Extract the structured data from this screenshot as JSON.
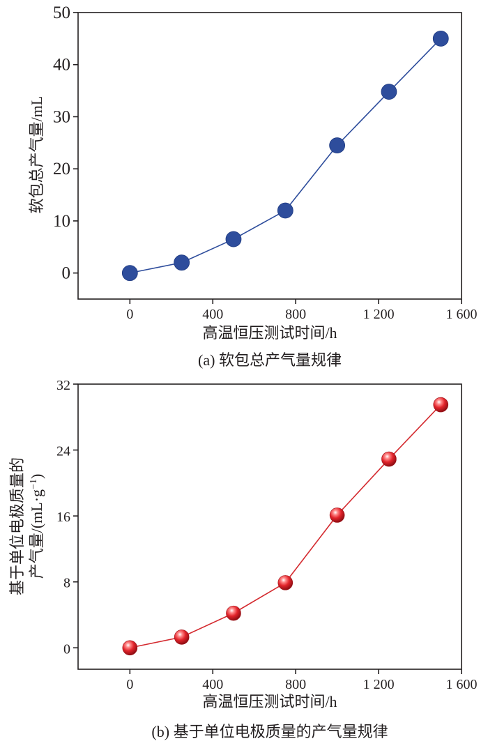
{
  "chart_data": [
    {
      "type": "line",
      "caption": "(a) 软包总产气量规律",
      "xlabel": "高温恒压测试时间/h",
      "ylabel": "软包总产气量/mL",
      "xlim": [
        -250,
        1600
      ],
      "ylim": [
        -5,
        50
      ],
      "xticks": [
        0,
        400,
        800,
        1200,
        1600
      ],
      "xtick_labels": [
        "0",
        "400",
        "800",
        "1 200",
        "1 600"
      ],
      "yticks": [
        0,
        10,
        20,
        30,
        40,
        50
      ],
      "ytick_labels": [
        "0",
        "10",
        "20",
        "30",
        "40",
        "50"
      ],
      "series": [
        {
          "x": [
            0,
            250,
            500,
            750,
            1000,
            1250,
            1500
          ],
          "y": [
            0,
            2,
            6.5,
            12,
            24.5,
            34.8,
            45
          ],
          "color": "#2e4d9c",
          "marker": "circle"
        }
      ],
      "grid": false
    },
    {
      "type": "line",
      "caption": "(b) 基于单位电极质量的产气量规律",
      "xlabel": "高温恒压测试时间/h",
      "ylabel_lines": [
        "基于单位电极质量的",
        "产气量/(mL·g",
        "−1",
        ")"
      ],
      "xlim": [
        -250,
        1600
      ],
      "ylim": [
        -2.6,
        32
      ],
      "xticks": [
        0,
        400,
        800,
        1200,
        1600
      ],
      "xtick_labels": [
        "0",
        "400",
        "800",
        "1 200",
        "1 600"
      ],
      "yticks": [
        0,
        8,
        16,
        24,
        32
      ],
      "ytick_labels": [
        "0",
        "8",
        "16",
        "24",
        "32"
      ],
      "series": [
        {
          "x": [
            0,
            250,
            500,
            750,
            1000,
            1250,
            1500
          ],
          "y": [
            0,
            1.3,
            4.2,
            7.9,
            16.1,
            22.9,
            29.5
          ],
          "color": "#d42a2f",
          "marker": "sphere"
        }
      ],
      "grid": false
    }
  ]
}
